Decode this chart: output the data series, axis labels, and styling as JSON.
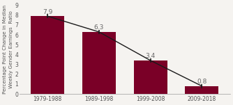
{
  "categories": [
    "1979-1988",
    "1989-1998",
    "1999-2008",
    "2009-2018"
  ],
  "values": [
    7.9,
    6.3,
    3.4,
    0.8
  ],
  "bar_color": "#7a0027",
  "line_color": "#1a1a1a",
  "label_color": "#666666",
  "background_color": "#f5f3f0",
  "ylabel_line1": "Percentage Point Change in Median",
  "ylabel_line2": "Weekly Gender Earnings  Ratio",
  "ylim": [
    0,
    9
  ],
  "yticks": [
    0,
    1,
    2,
    3,
    4,
    5,
    6,
    7,
    8,
    9
  ],
  "bar_width": 0.65,
  "label_fontsize": 6.5,
  "ylabel_fontsize": 5.2,
  "tick_fontsize": 5.5,
  "xtick_fontsize": 5.5
}
